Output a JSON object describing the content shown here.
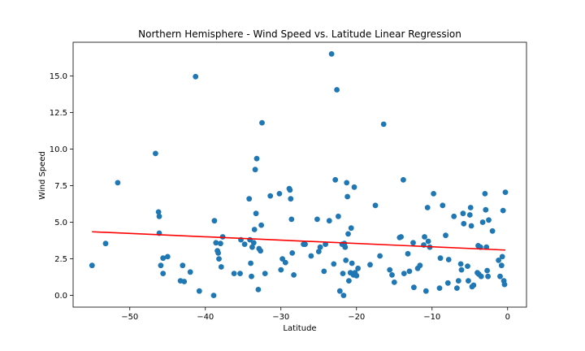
{
  "chart_data": {
    "type": "scatter",
    "title": "Northern Hemisphere - Wind Speed vs. Latitude Linear Regression",
    "xlabel": "Latitude",
    "ylabel": "Wind Speed",
    "xlim": [
      -57.5,
      2.5
    ],
    "ylim": [
      -0.8,
      17.3
    ],
    "xticks": [
      -50,
      -40,
      -30,
      -20,
      -10,
      0
    ],
    "xtick_labels": [
      "−50",
      "−40",
      "−30",
      "−20",
      "−10",
      "0"
    ],
    "yticks": [
      0.0,
      2.5,
      5.0,
      7.5,
      10.0,
      12.5,
      15.0
    ],
    "ytick_labels": [
      "0.0",
      "2.5",
      "5.0",
      "7.5",
      "10.0",
      "12.5",
      "15.0"
    ],
    "grid": false,
    "colors": {
      "points": "#1f77b4",
      "regression": "#ff0000"
    },
    "regression": {
      "x": [
        -55,
        -0.3
      ],
      "y": [
        4.35,
        3.1
      ]
    },
    "points": [
      [
        -55.0,
        2.05
      ],
      [
        -53.2,
        3.55
      ],
      [
        -51.6,
        7.7
      ],
      [
        -46.6,
        9.7
      ],
      [
        -46.2,
        5.7
      ],
      [
        -46.1,
        5.4
      ],
      [
        -46.1,
        4.25
      ],
      [
        -45.9,
        2.05
      ],
      [
        -45.6,
        2.55
      ],
      [
        -45.6,
        1.5
      ],
      [
        -45.0,
        2.65
      ],
      [
        -43.3,
        1.0
      ],
      [
        -43.0,
        2.05
      ],
      [
        -42.8,
        0.95
      ],
      [
        -42.0,
        1.6
      ],
      [
        -41.3,
        14.95
      ],
      [
        -40.8,
        0.3
      ],
      [
        -38.9,
        0.0
      ],
      [
        -38.8,
        5.1
      ],
      [
        -38.6,
        3.6
      ],
      [
        -38.4,
        3.05
      ],
      [
        -38.3,
        2.9
      ],
      [
        -38.2,
        2.5
      ],
      [
        -38.0,
        3.55
      ],
      [
        -37.9,
        1.95
      ],
      [
        -37.7,
        4.0
      ],
      [
        -36.2,
        1.5
      ],
      [
        -35.3,
        3.8
      ],
      [
        -34.8,
        3.5
      ],
      [
        -34.2,
        6.6
      ],
      [
        -34.1,
        3.8
      ],
      [
        -34.0,
        2.2
      ],
      [
        -33.9,
        1.3
      ],
      [
        -33.8,
        3.3
      ],
      [
        -33.6,
        3.6
      ],
      [
        -33.5,
        4.5
      ],
      [
        -33.4,
        8.6
      ],
      [
        -33.3,
        5.6
      ],
      [
        -33.2,
        9.35
      ],
      [
        -33.0,
        0.4
      ],
      [
        -32.9,
        3.2
      ],
      [
        -32.7,
        3.05
      ],
      [
        -32.6,
        4.8
      ],
      [
        -32.5,
        11.8
      ],
      [
        -32.1,
        1.5
      ],
      [
        -31.4,
        6.8
      ],
      [
        -30.2,
        6.95
      ],
      [
        -30.0,
        1.75
      ],
      [
        -29.8,
        2.5
      ],
      [
        -29.4,
        2.25
      ],
      [
        -28.9,
        7.3
      ],
      [
        -28.8,
        7.2
      ],
      [
        -28.7,
        6.6
      ],
      [
        -28.6,
        5.2
      ],
      [
        -28.5,
        2.9
      ],
      [
        -28.3,
        1.4
      ],
      [
        -26.8,
        3.5
      ],
      [
        -26.0,
        2.7
      ],
      [
        -25.2,
        5.2
      ],
      [
        -25.0,
        3.0
      ],
      [
        -24.8,
        3.3
      ],
      [
        -24.3,
        1.65
      ],
      [
        -24.1,
        3.5
      ],
      [
        -23.6,
        5.1
      ],
      [
        -23.3,
        16.5
      ],
      [
        -23.0,
        2.15
      ],
      [
        -22.8,
        7.9
      ],
      [
        -22.6,
        14.05
      ],
      [
        -22.4,
        5.4
      ],
      [
        -22.2,
        0.3
      ],
      [
        -21.8,
        1.5
      ],
      [
        -21.7,
        0.0
      ],
      [
        -21.6,
        3.55
      ],
      [
        -21.5,
        3.3
      ],
      [
        -21.4,
        2.4
      ],
      [
        -21.3,
        7.7
      ],
      [
        -21.2,
        6.75
      ],
      [
        -21.1,
        4.2
      ],
      [
        -21.0,
        1.0
      ],
      [
        -20.8,
        1.55
      ],
      [
        -20.7,
        4.6
      ],
      [
        -20.6,
        2.2
      ],
      [
        -20.4,
        1.4
      ],
      [
        -20.3,
        7.4
      ],
      [
        -20.2,
        1.55
      ],
      [
        -20.0,
        1.35
      ],
      [
        -19.8,
        1.85
      ],
      [
        -18.2,
        2.1
      ],
      [
        -17.5,
        6.15
      ],
      [
        -16.9,
        2.7
      ],
      [
        -16.4,
        11.7
      ],
      [
        -15.6,
        1.75
      ],
      [
        -15.3,
        1.4
      ],
      [
        -15.0,
        0.9
      ],
      [
        -14.1,
        4.0
      ],
      [
        -13.8,
        7.9
      ],
      [
        -13.7,
        1.5
      ],
      [
        -13.2,
        2.85
      ],
      [
        -13.0,
        1.65
      ],
      [
        -12.5,
        3.6
      ],
      [
        -12.4,
        0.55
      ],
      [
        -11.9,
        1.85
      ],
      [
        -11.6,
        2.05
      ],
      [
        -11.0,
        4.0
      ],
      [
        -10.8,
        0.3
      ],
      [
        -10.6,
        6.0
      ],
      [
        -10.5,
        3.7
      ],
      [
        -10.3,
        3.3
      ],
      [
        -9.8,
        6.95
      ],
      [
        -9.0,
        0.5
      ],
      [
        -8.9,
        2.55
      ],
      [
        -8.6,
        6.15
      ],
      [
        -8.2,
        4.1
      ],
      [
        -7.9,
        0.85
      ],
      [
        -7.8,
        2.45
      ],
      [
        -7.1,
        5.4
      ],
      [
        -6.7,
        0.5
      ],
      [
        -6.5,
        1.0
      ],
      [
        -6.2,
        2.15
      ],
      [
        -6.1,
        1.75
      ],
      [
        -5.9,
        5.6
      ],
      [
        -5.8,
        4.9
      ],
      [
        -5.3,
        2.0
      ],
      [
        -5.2,
        1.0
      ],
      [
        -5.0,
        5.5
      ],
      [
        -4.9,
        6.0
      ],
      [
        -4.8,
        4.75
      ],
      [
        -4.7,
        0.6
      ],
      [
        -4.5,
        0.7
      ],
      [
        -4.0,
        1.55
      ],
      [
        -3.8,
        1.45
      ],
      [
        -3.6,
        3.3
      ],
      [
        -3.5,
        1.3
      ],
      [
        -3.3,
        5.0
      ],
      [
        -3.0,
        6.95
      ],
      [
        -2.9,
        5.85
      ],
      [
        -2.8,
        3.3
      ],
      [
        -2.7,
        1.7
      ],
      [
        -2.6,
        1.3
      ],
      [
        -2.5,
        5.15
      ],
      [
        -2.0,
        4.4
      ],
      [
        -1.2,
        2.4
      ],
      [
        -1.0,
        1.3
      ],
      [
        -0.8,
        2.05
      ],
      [
        -0.7,
        2.65
      ],
      [
        -0.6,
        5.8
      ],
      [
        -0.5,
        1.0
      ],
      [
        -0.4,
        0.75
      ],
      [
        -0.3,
        7.05
      ],
      [
        -3.9,
        3.4
      ],
      [
        -11.1,
        3.45
      ],
      [
        -14.3,
        3.95
      ],
      [
        -21.9,
        3.5
      ],
      [
        -27.0,
        3.5
      ],
      [
        -35.4,
        1.5
      ]
    ]
  }
}
